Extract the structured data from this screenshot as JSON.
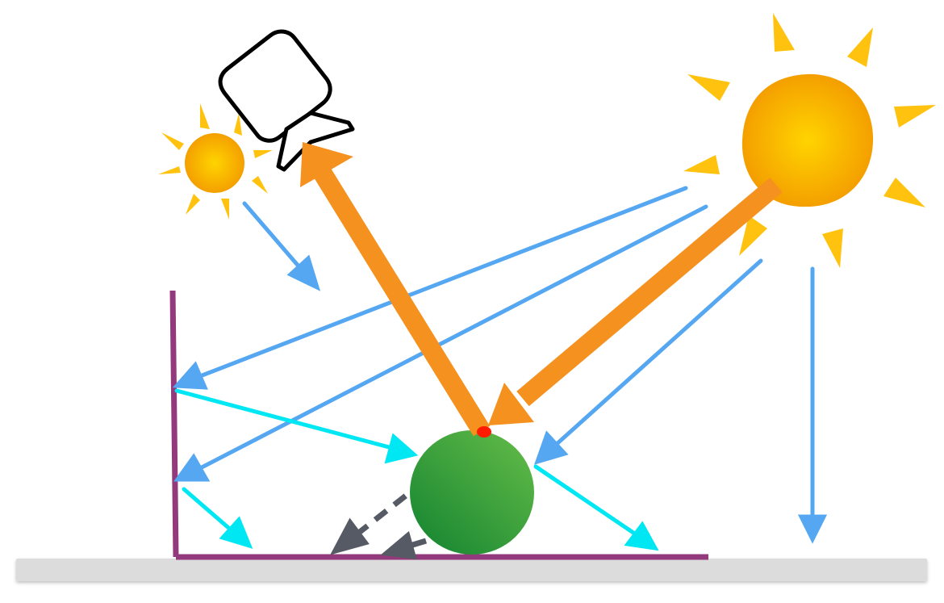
{
  "scene": {
    "objects": [
      {
        "id": "sun-large",
        "kind": "light-source",
        "icon": "sun-icon"
      },
      {
        "id": "sun-small",
        "kind": "light-source",
        "icon": "sun-icon"
      },
      {
        "id": "camera",
        "kind": "viewer",
        "icon": "camera-icon"
      },
      {
        "id": "sphere",
        "kind": "object",
        "icon": "sphere-icon"
      },
      {
        "id": "wall",
        "kind": "surface"
      },
      {
        "id": "ground",
        "kind": "surface"
      }
    ]
  },
  "colors": {
    "sun_core_light": "#ffd400",
    "sun_core_dark": "#f39a00",
    "sun_ray": "#ffc20e",
    "direct_light_ray": "#55a7f2",
    "bounced_light_ray": "#00e7f4",
    "primary_ray": "#f5911e",
    "shadow_ray": "#555a64",
    "sphere_light": "#5db746",
    "sphere_dark": "#1c8a33",
    "hit_point": "#ff1a00",
    "wall_floor": "#933a7c",
    "ground_base": "#dcdcdc"
  }
}
